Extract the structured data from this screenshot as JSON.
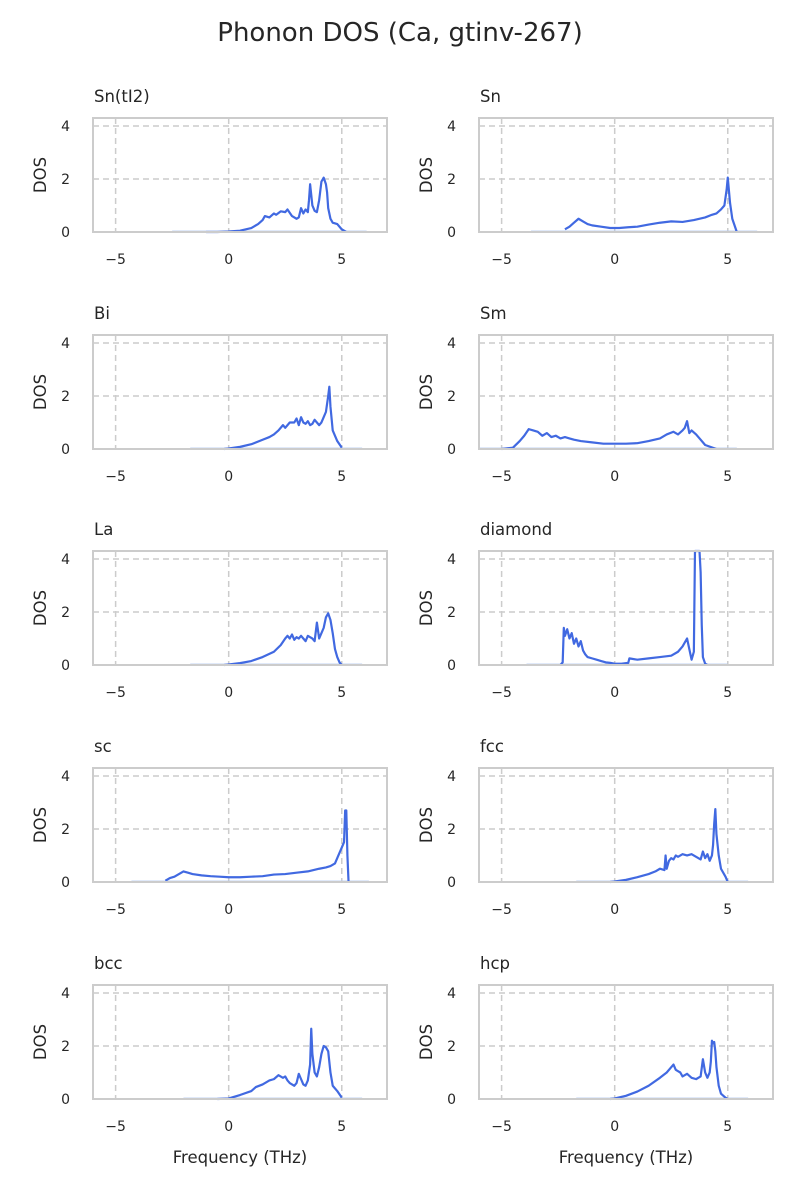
{
  "figure": {
    "title": "Phonon DOS (Ca, gtinv-267)"
  },
  "colors": {
    "line": "#4169e1",
    "negative_line": "#aec4ef",
    "grid": "#cccccc",
    "text": "#262626"
  },
  "chart_data": [
    {
      "type": "line",
      "title": "Sn(tI2)",
      "xlabel": "",
      "ylabel": "DOS",
      "xlim": [
        -6,
        7
      ],
      "ylim": [
        0,
        4.3
      ],
      "xticks": [
        -5,
        0,
        5
      ],
      "xtick_labels": [
        "−5",
        "0",
        "5"
      ],
      "yticks": [
        0,
        2,
        4
      ],
      "ytick_labels": [
        "0",
        "2",
        "4"
      ],
      "grid": true,
      "x": [
        -1.0,
        -0.5,
        0.0,
        0.5,
        1.0,
        1.3,
        1.5,
        1.6,
        1.8,
        2.0,
        2.1,
        2.3,
        2.5,
        2.6,
        2.8,
        3.0,
        3.1,
        3.2,
        3.3,
        3.4,
        3.5,
        3.55,
        3.6,
        3.7,
        3.8,
        3.9,
        4.0,
        4.1,
        4.2,
        4.3,
        4.35,
        4.4,
        4.5,
        4.6,
        4.8,
        5.0,
        5.2
      ],
      "y": [
        0.0,
        0.0,
        0.02,
        0.05,
        0.15,
        0.3,
        0.45,
        0.6,
        0.55,
        0.7,
        0.65,
        0.78,
        0.75,
        0.85,
        0.6,
        0.5,
        0.55,
        0.9,
        0.7,
        0.85,
        0.75,
        1.2,
        1.8,
        1.0,
        0.8,
        0.75,
        1.2,
        1.9,
        2.05,
        1.8,
        1.5,
        0.9,
        0.5,
        0.35,
        0.3,
        0.1,
        0.0
      ]
    },
    {
      "type": "line",
      "title": "Sn",
      "xlabel": "",
      "ylabel": "DOS",
      "xlim": [
        -6,
        7
      ],
      "ylim": [
        0,
        4.3
      ],
      "xticks": [
        -5,
        0,
        5
      ],
      "xtick_labels": [
        "−5",
        "0",
        "5"
      ],
      "yticks": [
        0,
        2,
        4
      ],
      "ytick_labels": [
        "0",
        "2",
        "4"
      ],
      "grid": true,
      "x": [
        -2.2,
        -2.0,
        -1.8,
        -1.6,
        -1.4,
        -1.2,
        -1.0,
        -0.6,
        -0.2,
        0.2,
        0.6,
        1.0,
        1.5,
        2.0,
        2.5,
        3.0,
        3.5,
        4.0,
        4.3,
        4.5,
        4.7,
        4.85,
        4.95,
        5.0,
        5.1,
        5.2,
        5.4
      ],
      "y": [
        0.1,
        0.2,
        0.35,
        0.5,
        0.4,
        0.3,
        0.25,
        0.2,
        0.15,
        0.15,
        0.18,
        0.2,
        0.28,
        0.35,
        0.4,
        0.38,
        0.45,
        0.55,
        0.65,
        0.7,
        0.85,
        1.0,
        1.6,
        2.05,
        1.1,
        0.5,
        0.0
      ]
    },
    {
      "type": "line",
      "title": "Bi",
      "xlabel": "",
      "ylabel": "DOS",
      "xlim": [
        -6,
        7
      ],
      "ylim": [
        0,
        4.3
      ],
      "xticks": [
        -5,
        0,
        5
      ],
      "xtick_labels": [
        "−5",
        "0",
        "5"
      ],
      "yticks": [
        0,
        2,
        4
      ],
      "ytick_labels": [
        "0",
        "2",
        "4"
      ],
      "grid": true,
      "x": [
        -0.2,
        0.0,
        0.5,
        1.0,
        1.5,
        1.8,
        2.0,
        2.2,
        2.4,
        2.5,
        2.7,
        2.9,
        3.0,
        3.1,
        3.2,
        3.3,
        3.4,
        3.5,
        3.6,
        3.7,
        3.8,
        3.9,
        4.0,
        4.1,
        4.2,
        4.3,
        4.4,
        4.45,
        4.5,
        4.6,
        4.8,
        5.0
      ],
      "y": [
        0.0,
        0.02,
        0.08,
        0.18,
        0.35,
        0.45,
        0.55,
        0.7,
        0.9,
        0.8,
        1.0,
        1.0,
        1.15,
        0.9,
        1.2,
        1.0,
        0.95,
        1.05,
        0.9,
        0.95,
        1.1,
        1.0,
        0.9,
        1.0,
        1.2,
        1.4,
        2.0,
        2.35,
        1.6,
        0.7,
        0.3,
        0.05
      ]
    },
    {
      "type": "line",
      "title": "Sm",
      "xlabel": "",
      "ylabel": "DOS",
      "xlim": [
        -6,
        7
      ],
      "ylim": [
        0,
        4.3
      ],
      "xticks": [
        -5,
        0,
        5
      ],
      "xtick_labels": [
        "−5",
        "0",
        "5"
      ],
      "yticks": [
        0,
        2,
        4
      ],
      "ytick_labels": [
        "0",
        "2",
        "4"
      ],
      "grid": true,
      "x": [
        -5.0,
        -4.5,
        -4.2,
        -4.0,
        -3.8,
        -3.6,
        -3.4,
        -3.2,
        -3.0,
        -2.8,
        -2.6,
        -2.4,
        -2.2,
        -2.0,
        -1.8,
        -1.5,
        -1.0,
        -0.5,
        0.0,
        0.5,
        1.0,
        1.5,
        2.0,
        2.3,
        2.6,
        2.8,
        3.0,
        3.1,
        3.2,
        3.3,
        3.4,
        3.6,
        3.8,
        4.0,
        4.5
      ],
      "y": [
        0.0,
        0.05,
        0.3,
        0.5,
        0.75,
        0.7,
        0.65,
        0.5,
        0.6,
        0.45,
        0.5,
        0.4,
        0.45,
        0.4,
        0.35,
        0.3,
        0.25,
        0.2,
        0.2,
        0.2,
        0.22,
        0.3,
        0.4,
        0.55,
        0.65,
        0.55,
        0.7,
        0.8,
        1.05,
        0.6,
        0.7,
        0.55,
        0.35,
        0.15,
        0.0
      ]
    },
    {
      "type": "line",
      "title": "La",
      "xlabel": "",
      "ylabel": "DOS",
      "xlim": [
        -6,
        7
      ],
      "ylim": [
        0,
        4.3
      ],
      "xticks": [
        -5,
        0,
        5
      ],
      "xtick_labels": [
        "−5",
        "0",
        "5"
      ],
      "yticks": [
        0,
        2,
        4
      ],
      "ytick_labels": [
        "0",
        "2",
        "4"
      ],
      "grid": true,
      "x": [
        -0.2,
        0.0,
        0.5,
        1.0,
        1.5,
        2.0,
        2.3,
        2.5,
        2.6,
        2.7,
        2.8,
        2.9,
        3.0,
        3.1,
        3.2,
        3.3,
        3.4,
        3.5,
        3.6,
        3.7,
        3.8,
        3.9,
        4.0,
        4.1,
        4.2,
        4.3,
        4.4,
        4.5,
        4.6,
        4.7,
        4.8,
        4.9,
        5.0
      ],
      "y": [
        0.0,
        0.02,
        0.07,
        0.15,
        0.3,
        0.5,
        0.75,
        1.0,
        1.1,
        1.0,
        1.15,
        0.95,
        1.05,
        1.0,
        1.1,
        1.0,
        0.9,
        1.1,
        1.05,
        1.0,
        0.9,
        1.6,
        1.0,
        1.2,
        1.4,
        1.8,
        1.95,
        1.7,
        1.2,
        0.6,
        0.3,
        0.1,
        0.0
      ]
    },
    {
      "type": "line",
      "title": "diamond",
      "xlabel": "",
      "ylabel": "DOS",
      "xlim": [
        -6,
        7
      ],
      "ylim": [
        0,
        4.3
      ],
      "xticks": [
        -5,
        0,
        5
      ],
      "xtick_labels": [
        "−5",
        "0",
        "5"
      ],
      "yticks": [
        0,
        2,
        4
      ],
      "ytick_labels": [
        "0",
        "2",
        "4"
      ],
      "grid": true,
      "x": [
        -2.4,
        -2.3,
        -2.25,
        -2.2,
        -2.1,
        -2.0,
        -1.9,
        -1.8,
        -1.7,
        -1.6,
        -1.5,
        -1.4,
        -1.3,
        -1.2,
        -1.0,
        -0.8,
        -0.6,
        -0.4,
        -0.2,
        0.0,
        0.3,
        0.6,
        0.65,
        1.0,
        1.5,
        2.0,
        2.5,
        2.8,
        3.0,
        3.2,
        3.3,
        3.4,
        3.5,
        3.55,
        3.6,
        3.7,
        3.75,
        3.8,
        3.85,
        3.9,
        4.0,
        4.1
      ],
      "y": [
        0.0,
        0.1,
        1.4,
        1.1,
        1.35,
        1.0,
        1.2,
        0.8,
        1.0,
        0.7,
        0.9,
        0.55,
        0.4,
        0.3,
        0.25,
        0.2,
        0.15,
        0.1,
        0.08,
        0.05,
        0.05,
        0.08,
        0.25,
        0.2,
        0.25,
        0.3,
        0.35,
        0.5,
        0.7,
        1.0,
        0.6,
        0.2,
        0.5,
        4.3,
        4.3,
        4.3,
        4.3,
        3.5,
        1.5,
        0.3,
        0.05,
        0.0
      ]
    },
    {
      "type": "line",
      "title": "sc",
      "xlabel": "",
      "ylabel": "DOS",
      "xlim": [
        -6,
        7
      ],
      "ylim": [
        0,
        4.3
      ],
      "xticks": [
        -5,
        0,
        5
      ],
      "xtick_labels": [
        "−5",
        "0",
        "5"
      ],
      "yticks": [
        0,
        2,
        4
      ],
      "ytick_labels": [
        "0",
        "2",
        "4"
      ],
      "grid": true,
      "x": [
        -2.8,
        -2.6,
        -2.4,
        -2.2,
        -2.0,
        -1.8,
        -1.6,
        -1.2,
        -0.8,
        -0.4,
        0.0,
        0.5,
        1.0,
        1.5,
        2.0,
        2.5,
        3.0,
        3.5,
        4.0,
        4.3,
        4.5,
        4.7,
        4.85,
        5.0,
        5.1,
        5.15,
        5.2,
        5.25,
        5.3
      ],
      "y": [
        0.05,
        0.15,
        0.2,
        0.3,
        0.4,
        0.35,
        0.3,
        0.25,
        0.22,
        0.2,
        0.18,
        0.18,
        0.2,
        0.22,
        0.28,
        0.3,
        0.35,
        0.4,
        0.5,
        0.55,
        0.6,
        0.7,
        1.0,
        1.3,
        1.5,
        2.7,
        2.7,
        1.0,
        0.0
      ]
    },
    {
      "type": "line",
      "title": "fcc",
      "xlabel": "",
      "ylabel": "DOS",
      "xlim": [
        -6,
        7
      ],
      "ylim": [
        0,
        4.3
      ],
      "xticks": [
        -5,
        0,
        5
      ],
      "xtick_labels": [
        "−5",
        "0",
        "5"
      ],
      "yticks": [
        0,
        2,
        4
      ],
      "ytick_labels": [
        "0",
        "2",
        "4"
      ],
      "grid": true,
      "x": [
        -0.2,
        0.0,
        0.5,
        1.0,
        1.5,
        1.8,
        2.0,
        2.2,
        2.25,
        2.3,
        2.4,
        2.5,
        2.6,
        2.7,
        2.8,
        3.0,
        3.2,
        3.4,
        3.6,
        3.8,
        3.9,
        4.0,
        4.1,
        4.2,
        4.3,
        4.35,
        4.4,
        4.45,
        4.5,
        4.6,
        4.7,
        4.9,
        5.0
      ],
      "y": [
        0.0,
        0.02,
        0.08,
        0.18,
        0.3,
        0.4,
        0.5,
        0.45,
        1.0,
        0.5,
        0.8,
        0.9,
        0.85,
        1.0,
        0.95,
        1.05,
        1.0,
        1.05,
        0.95,
        0.85,
        1.15,
        0.9,
        1.05,
        0.8,
        1.0,
        1.4,
        2.2,
        2.75,
        1.8,
        1.0,
        0.5,
        0.2,
        0.0
      ]
    },
    {
      "type": "line",
      "title": "bcc",
      "xlabel": "",
      "ylabel": "DOS",
      "xlim": [
        -6,
        7
      ],
      "ylim": [
        0,
        4.3
      ],
      "xticks": [
        -5,
        0,
        5
      ],
      "xtick_labels": [
        "−5",
        "0",
        "5"
      ],
      "yticks": [
        0,
        2,
        4
      ],
      "ytick_labels": [
        "0",
        "2",
        "4"
      ],
      "grid": true,
      "x": [
        -0.5,
        0.0,
        0.5,
        1.0,
        1.2,
        1.5,
        1.8,
        2.0,
        2.2,
        2.4,
        2.5,
        2.6,
        2.7,
        2.8,
        2.9,
        3.0,
        3.1,
        3.2,
        3.3,
        3.4,
        3.5,
        3.6,
        3.65,
        3.7,
        3.8,
        3.9,
        4.0,
        4.1,
        4.2,
        4.3,
        4.4,
        4.5,
        4.6,
        4.8,
        5.0
      ],
      "y": [
        0.0,
        0.02,
        0.15,
        0.3,
        0.45,
        0.55,
        0.7,
        0.75,
        0.9,
        0.8,
        0.85,
        0.7,
        0.6,
        0.55,
        0.5,
        0.6,
        0.95,
        0.75,
        0.55,
        0.5,
        0.7,
        1.3,
        2.65,
        1.7,
        1.0,
        0.85,
        1.2,
        1.7,
        2.0,
        1.95,
        1.8,
        1.0,
        0.5,
        0.3,
        0.05
      ]
    },
    {
      "type": "line",
      "title": "hcp",
      "xlabel": "Frequency (THz)",
      "ylabel": "DOS",
      "xlim": [
        -6,
        7
      ],
      "ylim": [
        0,
        4.3
      ],
      "xticks": [
        -5,
        0,
        5
      ],
      "xtick_labels": [
        "−5",
        "0",
        "5"
      ],
      "yticks": [
        0,
        2,
        4
      ],
      "ytick_labels": [
        "0",
        "2",
        "4"
      ],
      "grid": true,
      "x": [
        -0.2,
        0.0,
        0.5,
        1.0,
        1.5,
        2.0,
        2.3,
        2.5,
        2.6,
        2.7,
        2.8,
        2.9,
        3.0,
        3.2,
        3.4,
        3.6,
        3.8,
        3.9,
        4.0,
        4.1,
        4.2,
        4.25,
        4.3,
        4.35,
        4.4,
        4.45,
        4.5,
        4.6,
        4.7,
        4.9,
        5.0
      ],
      "y": [
        0.0,
        0.02,
        0.12,
        0.28,
        0.5,
        0.8,
        1.0,
        1.2,
        1.3,
        1.1,
        1.05,
        1.0,
        0.85,
        0.95,
        0.8,
        0.75,
        0.85,
        1.5,
        1.0,
        0.8,
        1.0,
        1.4,
        2.2,
        2.1,
        2.15,
        1.8,
        1.2,
        0.5,
        0.2,
        0.05,
        0.0
      ]
    }
  ],
  "extra_xlabel": "Frequency (THz)"
}
